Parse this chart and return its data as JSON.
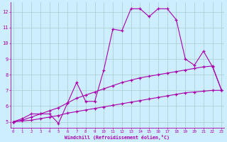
{
  "xlabel": "Windchill (Refroidissement éolien,°C)",
  "x_values": [
    0,
    1,
    2,
    3,
    4,
    5,
    6,
    7,
    8,
    9,
    10,
    11,
    12,
    13,
    14,
    15,
    16,
    17,
    18,
    19,
    20,
    21,
    22,
    23
  ],
  "line1": [
    5.0,
    5.2,
    5.5,
    5.5,
    5.5,
    4.9,
    6.2,
    7.5,
    6.3,
    6.3,
    8.3,
    10.9,
    10.8,
    12.2,
    12.2,
    11.7,
    12.2,
    12.2,
    11.5,
    9.0,
    8.6,
    9.5,
    8.5,
    7.0
  ],
  "line2": [
    5.0,
    5.1,
    5.3,
    5.5,
    5.7,
    5.9,
    6.2,
    6.5,
    6.7,
    6.9,
    7.1,
    7.3,
    7.5,
    7.65,
    7.8,
    7.9,
    8.0,
    8.1,
    8.2,
    8.3,
    8.4,
    8.5,
    8.55,
    7.0
  ],
  "line3": [
    5.0,
    5.05,
    5.1,
    5.2,
    5.3,
    5.4,
    5.55,
    5.65,
    5.75,
    5.85,
    5.95,
    6.05,
    6.15,
    6.25,
    6.35,
    6.45,
    6.55,
    6.65,
    6.75,
    6.85,
    6.9,
    6.95,
    7.0,
    7.0
  ],
  "line_color": "#aa00aa",
  "bg_color": "#cceeff",
  "grid_color": "#aacccc",
  "ylim": [
    4.6,
    12.6
  ],
  "yticks": [
    5,
    6,
    7,
    8,
    9,
    10,
    11,
    12
  ],
  "xticks": [
    0,
    1,
    2,
    3,
    4,
    5,
    6,
    7,
    8,
    9,
    10,
    11,
    12,
    13,
    14,
    15,
    16,
    17,
    18,
    19,
    20,
    21,
    22,
    23
  ],
  "label_color": "#aa00aa",
  "tick_color": "#aa00aa"
}
